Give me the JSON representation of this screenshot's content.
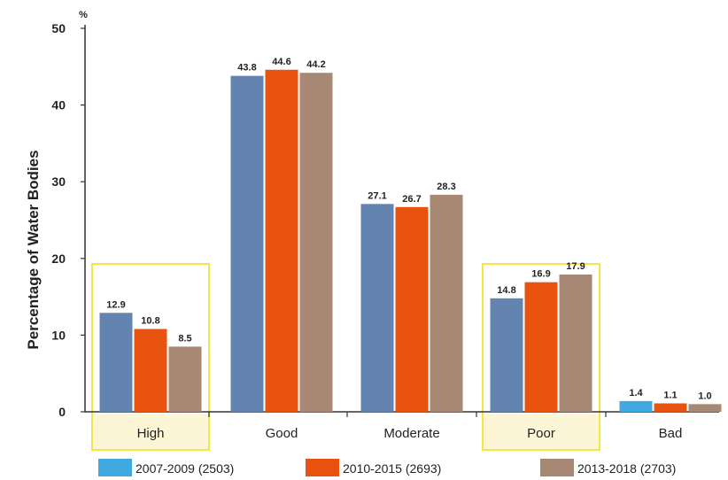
{
  "chart_data": {
    "type": "bar",
    "categories": [
      "High",
      "Good",
      "Moderate",
      "Poor",
      "Bad"
    ],
    "highlighted_categories": [
      "High",
      "Poor"
    ],
    "series": [
      {
        "name": "2007-2009 (2503)",
        "values": [
          12.9,
          43.8,
          27.1,
          14.8,
          1.4
        ]
      },
      {
        "name": "2010-2015 (2693)",
        "values": [
          10.8,
          44.6,
          26.7,
          16.9,
          1.1
        ]
      },
      {
        "name": "2013-2018 (2703)",
        "values": [
          8.5,
          44.2,
          28.3,
          17.9,
          1.0
        ]
      }
    ],
    "data_labels": [
      [
        "12.9",
        "43.8",
        "27.1",
        "14.8",
        "1.4"
      ],
      [
        "10.8",
        "44.6",
        "26.7",
        "16.9",
        "1.1"
      ],
      [
        "8.5",
        "44.2",
        "28.3",
        "17.9",
        "1.0"
      ]
    ],
    "bar_colors": [
      [
        "#6383b0",
        "#6383b0",
        "#6383b0",
        "#6383b0",
        "#3fa9e0"
      ],
      [
        "#e8530f",
        "#e8530f",
        "#e8530f",
        "#e8530f",
        "#e8530f"
      ],
      [
        "#a78875",
        "#a78875",
        "#a78875",
        "#a78875",
        "#a78875"
      ]
    ],
    "legend_colors": [
      "#3fa9e0",
      "#e8530f",
      "#a78875"
    ],
    "highlight_color": "#f5e642",
    "highlight_fill": "#fdf6d6",
    "ylabel": "Percentage of Water Bodies",
    "unit": "%",
    "ylim": [
      0,
      50
    ],
    "yticks": [
      0,
      10,
      20,
      30,
      40,
      50
    ],
    "grid": false,
    "legend_position": "bottom"
  }
}
